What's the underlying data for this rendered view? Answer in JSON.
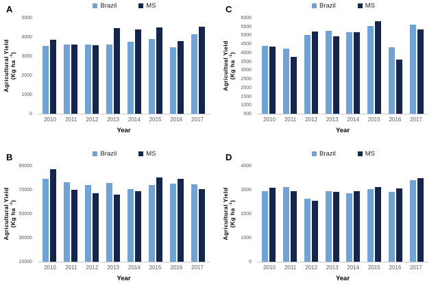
{
  "colors": {
    "brazil": "#6FA3D8",
    "ms": "#14264E",
    "axis_line": "#C9C9C9",
    "tick_text": "#595959"
  },
  "chart_data": [
    {
      "panel": "A",
      "type": "bar",
      "title": "",
      "xlabel": "Year",
      "ylabel_line1": "Agricultural Yield",
      "unit_prefix": "(Kg ha ",
      "unit_sup": "-1",
      "unit_suffix": ")",
      "ylim": [
        0,
        5000
      ],
      "yticks": [
        0,
        1000,
        2000,
        3000,
        4000,
        5000
      ],
      "grid": false,
      "legend_position": "top-center",
      "categories": [
        "2010",
        "2011",
        "2012",
        "2013",
        "2014",
        "2015",
        "2016",
        "2017"
      ],
      "series": [
        {
          "name": "Brazil",
          "color": "#6FA3D8",
          "values": [
            3550,
            3620,
            3600,
            3620,
            3740,
            3880,
            3480,
            4130
          ]
        },
        {
          "name": "MS",
          "color": "#14264E",
          "values": [
            3870,
            3620,
            3570,
            4470,
            4380,
            4490,
            3770,
            4550
          ]
        }
      ]
    },
    {
      "panel": "B",
      "type": "bar",
      "title": "",
      "xlabel": "Year",
      "ylabel_line1": "Agricultural Yield",
      "unit_prefix": "(Kg ha ",
      "unit_sup": "-1",
      "unit_suffix": ")",
      "ylim": [
        10000,
        90000
      ],
      "yticks": [
        10000,
        30000,
        50000,
        70000,
        90000
      ],
      "grid": false,
      "legend_position": "top-center",
      "categories": [
        "2010",
        "2011",
        "2012",
        "2013",
        "2014",
        "2015",
        "2016",
        "2017"
      ],
      "series": [
        {
          "name": "Brazil",
          "color": "#6FA3D8",
          "values": [
            79000,
            76500,
            74000,
            75500,
            70500,
            74200,
            75000,
            74500
          ]
        },
        {
          "name": "MS",
          "color": "#14264E",
          "values": [
            87000,
            70200,
            67000,
            66000,
            68800,
            80300,
            79200,
            70800
          ]
        }
      ]
    },
    {
      "panel": "C",
      "type": "bar",
      "title": "",
      "xlabel": "Year",
      "ylabel_line1": "Agricultual Yield",
      "unit_prefix": "(Kg ha ",
      "unit_sup": "-1",
      "unit_suffix": ")",
      "ylim": [
        500,
        6000
      ],
      "yticks": [
        500,
        1000,
        1500,
        2000,
        2500,
        3000,
        3500,
        4000,
        4500,
        5000,
        5500,
        6000
      ],
      "grid": false,
      "legend_position": "top-center",
      "categories": [
        "2010",
        "2011",
        "2012",
        "2013",
        "2014",
        "2015",
        "2016",
        "2017"
      ],
      "series": [
        {
          "name": "Brazil",
          "color": "#6FA3D8",
          "values": [
            4380,
            4220,
            5030,
            5260,
            5180,
            5520,
            4300,
            5600
          ]
        },
        {
          "name": "MS",
          "color": "#14264E",
          "values": [
            4350,
            3760,
            5200,
            4950,
            5180,
            5790,
            3590,
            5350
          ]
        }
      ]
    },
    {
      "panel": "D",
      "type": "bar",
      "title": "",
      "xlabel": "Year",
      "ylabel_line1": "Agricultural Yield",
      "unit_prefix": "(Kg ha ",
      "unit_sup": "-1",
      "unit_suffix": ")",
      "ylim": [
        0,
        4000
      ],
      "yticks": [
        0,
        1000,
        2000,
        3000,
        4000
      ],
      "grid": false,
      "legend_position": "top-center",
      "categories": [
        "2010",
        "2011",
        "2012",
        "2013",
        "2014",
        "2015",
        "2016",
        "2017"
      ],
      "series": [
        {
          "name": "Brazil",
          "color": "#6FA3D8",
          "values": [
            2950,
            3120,
            2640,
            2930,
            2870,
            3040,
            2910,
            3400
          ]
        },
        {
          "name": "MS",
          "color": "#14264E",
          "values": [
            3080,
            2930,
            2530,
            2910,
            2940,
            3110,
            3060,
            3480
          ]
        }
      ]
    }
  ]
}
